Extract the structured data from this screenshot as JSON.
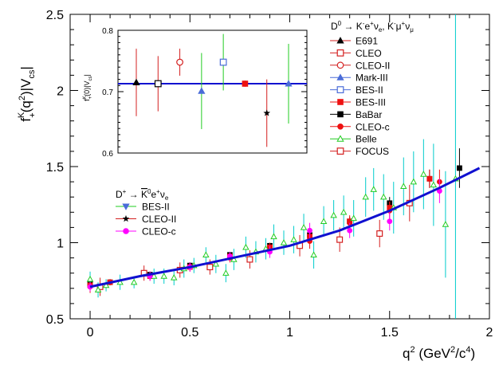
{
  "chart_data": {
    "type": "scatter",
    "ylabel": "f+K(q2)|Vcs|",
    "xlabel": "q2 (GeV2/c4)",
    "xlim": [
      -0.1,
      2.0
    ],
    "ylim": [
      0.5,
      2.5
    ],
    "x_ticks": [
      "0",
      "0.5",
      "1",
      "1.5",
      "2"
    ],
    "y_ticks": [
      "0.5",
      "1",
      "1.5",
      "2",
      "2.5"
    ],
    "colors": {
      "fit": "#1010d0",
      "E691": "#000000",
      "CLEO": "#d42020",
      "BES-III": "#ee1111",
      "BES-II": "#4a6cd8",
      "Belle": "#22cc22",
      "Belle_err": "#00cccc",
      "CLEO-c": "#ff00ff"
    },
    "fit_curve": {
      "name": "",
      "x": [
        0.0,
        0.25,
        0.5,
        0.75,
        1.0,
        1.25,
        1.5,
        1.75,
        1.95
      ],
      "y": [
        0.71,
        0.78,
        0.84,
        0.91,
        0.98,
        1.08,
        1.21,
        1.36,
        1.49
      ]
    },
    "legend_main": {
      "title": "D0 → K-e+νe, K-μ+νμ",
      "entries": [
        "E691",
        "CLEO",
        "CLEO-II",
        "Mark-III",
        "BES-II",
        "BES-III",
        "BaBar",
        "CLEO-c",
        "Belle",
        "FOCUS"
      ]
    },
    "legend_dplus": {
      "title": "D+ → K0e+νe",
      "entries": [
        "BES-II",
        "CLEO-II",
        "CLEO-c"
      ]
    },
    "series": [
      {
        "name": "BaBar",
        "marker": "square-filled",
        "color": "#000000",
        "points": [
          [
            0.0,
            0.73,
            0.03
          ],
          [
            0.1,
            0.74,
            0.02
          ],
          [
            0.3,
            0.79,
            0.02
          ],
          [
            0.5,
            0.85,
            0.02
          ],
          [
            0.7,
            0.92,
            0.02
          ],
          [
            0.9,
            0.98,
            0.02
          ],
          [
            1.1,
            1.05,
            0.03
          ],
          [
            1.3,
            1.14,
            0.03
          ],
          [
            1.5,
            1.26,
            0.04
          ],
          [
            1.7,
            1.42,
            0.06
          ],
          [
            1.85,
            1.49,
            0.13
          ]
        ]
      },
      {
        "name": "BES-III",
        "marker": "square-filled",
        "color": "#ee1111",
        "points": [
          [
            0.0,
            0.72,
            0.02
          ],
          [
            0.1,
            0.74,
            0.02
          ],
          [
            0.3,
            0.78,
            0.02
          ],
          [
            0.5,
            0.84,
            0.02
          ],
          [
            0.7,
            0.91,
            0.02
          ],
          [
            0.9,
            0.97,
            0.02
          ],
          [
            1.1,
            1.04,
            0.03
          ],
          [
            1.3,
            1.14,
            0.03
          ],
          [
            1.5,
            1.23,
            0.04
          ],
          [
            1.7,
            1.42,
            0.06
          ]
        ]
      },
      {
        "name": "CLEO-c",
        "marker": "circle-filled",
        "color": "#ee1111",
        "points": [
          [
            0.0,
            0.71,
            0.04
          ],
          [
            0.3,
            0.78,
            0.03
          ],
          [
            0.5,
            0.84,
            0.03
          ],
          [
            0.7,
            0.9,
            0.03
          ],
          [
            0.9,
            0.96,
            0.04
          ],
          [
            1.1,
            1.01,
            0.05
          ],
          [
            1.3,
            1.13,
            0.05
          ],
          [
            1.5,
            1.21,
            0.06
          ],
          [
            1.75,
            1.4,
            0.08
          ]
        ]
      },
      {
        "name": "FOCUS",
        "marker": "square-open",
        "color": "#d42020",
        "points": [
          [
            0.05,
            0.71,
            0.06
          ],
          [
            0.27,
            0.8,
            0.05
          ],
          [
            0.45,
            0.82,
            0.05
          ],
          [
            0.6,
            0.84,
            0.05
          ],
          [
            0.8,
            0.89,
            0.06
          ],
          [
            1.05,
            0.98,
            0.07
          ],
          [
            1.25,
            1.02,
            0.08
          ],
          [
            1.45,
            1.06,
            0.09
          ],
          [
            1.6,
            1.26,
            0.12
          ]
        ]
      },
      {
        "name": "Belle",
        "marker": "triangle-open",
        "color": "#22cc22",
        "err_color": "#00cccc",
        "points": [
          [
            0.0,
            0.76,
            0.05
          ],
          [
            0.04,
            0.69,
            0.05
          ],
          [
            0.08,
            0.72,
            0.04
          ],
          [
            0.15,
            0.74,
            0.05
          ],
          [
            0.22,
            0.74,
            0.04
          ],
          [
            0.32,
            0.78,
            0.05
          ],
          [
            0.37,
            0.78,
            0.05
          ],
          [
            0.42,
            0.77,
            0.05
          ],
          [
            0.47,
            0.83,
            0.06
          ],
          [
            0.52,
            0.85,
            0.05
          ],
          [
            0.58,
            0.92,
            0.05
          ],
          [
            0.63,
            0.86,
            0.06
          ],
          [
            0.68,
            0.8,
            0.06
          ],
          [
            0.72,
            0.89,
            0.07
          ],
          [
            0.78,
            0.97,
            0.07
          ],
          [
            0.83,
            0.94,
            0.07
          ],
          [
            0.88,
            0.96,
            0.07
          ],
          [
            0.92,
            1.04,
            0.08
          ],
          [
            0.97,
            1.0,
            0.08
          ],
          [
            1.02,
            1.02,
            0.09
          ],
          [
            1.07,
            1.1,
            0.09
          ],
          [
            1.12,
            0.92,
            0.09
          ],
          [
            1.17,
            1.14,
            0.1
          ],
          [
            1.22,
            1.18,
            0.1
          ],
          [
            1.27,
            1.2,
            0.11
          ],
          [
            1.32,
            1.16,
            0.12
          ],
          [
            1.38,
            1.3,
            0.13
          ],
          [
            1.42,
            1.35,
            0.14
          ],
          [
            1.47,
            1.3,
            0.15
          ],
          [
            1.52,
            1.23,
            0.17
          ],
          [
            1.57,
            1.37,
            0.19
          ],
          [
            1.62,
            1.4,
            0.2
          ],
          [
            1.67,
            1.45,
            0.23
          ],
          [
            1.72,
            1.38,
            0.27
          ],
          [
            1.78,
            1.12,
            0.35
          ],
          [
            1.83,
            1.42,
            1.37
          ]
        ]
      },
      {
        "name": "CLEO-c (D+)",
        "marker": "circle-filled",
        "color": "#ff00ff",
        "points": [
          [
            0.0,
            0.71,
            0.03
          ],
          [
            0.3,
            0.78,
            0.03
          ],
          [
            0.5,
            0.84,
            0.03
          ],
          [
            0.7,
            0.91,
            0.03
          ],
          [
            0.9,
            0.94,
            0.04
          ],
          [
            1.1,
            1.08,
            0.05
          ],
          [
            1.3,
            1.08,
            0.05
          ],
          [
            1.5,
            1.14,
            0.06
          ],
          [
            1.75,
            1.34,
            0.08
          ]
        ]
      }
    ],
    "inset": {
      "ylabel": "f+K(0)|Vcs|",
      "ylim": [
        0.6,
        0.8
      ],
      "y_ticks": [
        "0.6",
        "0.7",
        "0.8"
      ],
      "band_value": 0.713,
      "points": [
        {
          "name": "E691",
          "marker": "triangle-filled",
          "color": "#000000",
          "err_color": "#d42020",
          "y": 0.715,
          "err": 0.055
        },
        {
          "name": "CLEO",
          "marker": "square-open",
          "color": "#000000",
          "err_color": "#d42020",
          "y": 0.713,
          "err": 0.045
        },
        {
          "name": "CLEO-II",
          "marker": "circle-open",
          "color": "#d42020",
          "err_color": "#d42020",
          "y": 0.748,
          "err": 0.022
        },
        {
          "name": "Mark-III",
          "marker": "triangle-filled",
          "color": "#4a6cd8",
          "err_color": "#22cc22",
          "y": 0.701,
          "err": 0.062
        },
        {
          "name": "BES-II",
          "marker": "square-open",
          "color": "#4a6cd8",
          "err_color": "#22cc22",
          "y": 0.748,
          "err": 0.046
        },
        {
          "name": "BES-III",
          "marker": "square-filled",
          "color": "#ee1111",
          "err_color": "#ee1111",
          "y": 0.713,
          "err": 0.005
        },
        {
          "name": "BaBar",
          "marker": "star",
          "color": "#000000",
          "err_color": "#d42020",
          "y": 0.665,
          "err": 0.055
        },
        {
          "name": "CLEO-c",
          "marker": "triangle-filled",
          "color": "#4a6cd8",
          "err_color": "#22cc22",
          "y": 0.713,
          "err": 0.065
        }
      ]
    }
  }
}
